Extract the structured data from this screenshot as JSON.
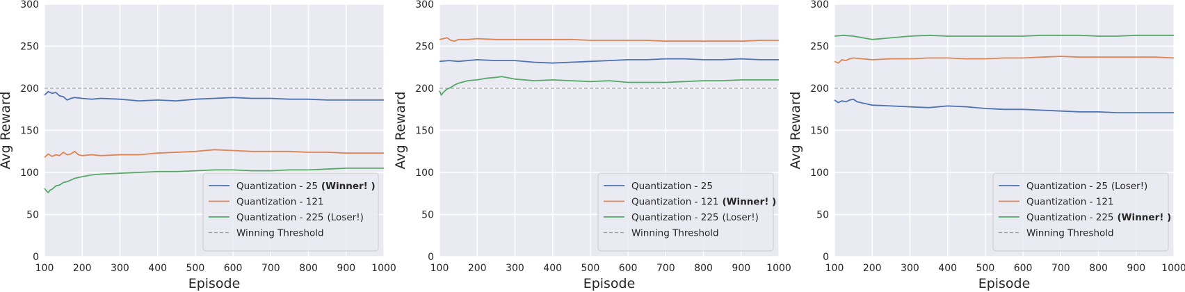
{
  "figure": {
    "panel_count": 3
  },
  "chart_data": [
    {
      "type": "line",
      "xlabel": "Episode",
      "ylabel": "Avg Reward",
      "xlim": [
        100,
        1000
      ],
      "ylim": [
        0,
        300
      ],
      "xticks": [
        100,
        200,
        300,
        400,
        500,
        600,
        700,
        800,
        900,
        1000
      ],
      "yticks": [
        0,
        50,
        100,
        150,
        200,
        250,
        300
      ],
      "grid": true,
      "legend_position": "lower-right",
      "threshold": {
        "name": "Winning Threshold",
        "value": 200,
        "color": "#a0a0a0"
      },
      "series": [
        {
          "name": "Quantization - 25",
          "tag": "(Winner! )",
          "tag_bold": true,
          "color": "#4c72b0",
          "x": [
            100,
            110,
            120,
            130,
            140,
            150,
            160,
            170,
            180,
            200,
            225,
            250,
            300,
            325,
            350,
            400,
            450,
            500,
            550,
            600,
            650,
            700,
            750,
            800,
            850,
            900,
            950,
            1000
          ],
          "values": [
            192,
            196,
            194,
            195,
            191,
            190,
            186,
            188,
            189,
            188,
            187,
            188,
            187,
            186,
            185,
            186,
            185,
            187,
            188,
            189,
            188,
            188,
            187,
            187,
            186,
            186,
            186,
            186
          ]
        },
        {
          "name": "Quantization - 121",
          "tag": "",
          "tag_bold": false,
          "color": "#dd8452",
          "x": [
            100,
            110,
            120,
            130,
            140,
            150,
            160,
            170,
            180,
            190,
            200,
            225,
            250,
            300,
            350,
            400,
            450,
            500,
            550,
            600,
            650,
            700,
            750,
            800,
            850,
            900,
            950,
            1000
          ],
          "values": [
            118,
            122,
            119,
            121,
            120,
            124,
            121,
            122,
            125,
            121,
            120,
            121,
            120,
            121,
            121,
            123,
            124,
            125,
            127,
            126,
            125,
            125,
            125,
            124,
            124,
            123,
            123,
            123
          ]
        },
        {
          "name": "Quantization - 225",
          "tag": "(Loser!)",
          "tag_bold": false,
          "color": "#55a868",
          "x": [
            100,
            105,
            110,
            115,
            120,
            130,
            140,
            150,
            160,
            170,
            180,
            200,
            225,
            250,
            300,
            350,
            400,
            450,
            500,
            550,
            600,
            650,
            700,
            750,
            800,
            850,
            900,
            950,
            1000
          ],
          "values": [
            81,
            78,
            76,
            79,
            80,
            84,
            85,
            88,
            89,
            91,
            93,
            95,
            97,
            98,
            99,
            100,
            101,
            101,
            102,
            103,
            103,
            102,
            102,
            103,
            103,
            104,
            105,
            105,
            105
          ]
        }
      ]
    },
    {
      "type": "line",
      "xlabel": "Episode",
      "ylabel": "Avg Reward",
      "xlim": [
        100,
        1000
      ],
      "ylim": [
        0,
        300
      ],
      "xticks": [
        100,
        200,
        300,
        400,
        500,
        600,
        700,
        800,
        900,
        1000
      ],
      "yticks": [
        0,
        50,
        100,
        150,
        200,
        250,
        300
      ],
      "grid": true,
      "legend_position": "lower-right",
      "threshold": {
        "name": "Winning Threshold",
        "value": 200,
        "color": "#a0a0a0"
      },
      "series": [
        {
          "name": "Quantization - 25",
          "tag": "",
          "tag_bold": false,
          "color": "#4c72b0",
          "x": [
            100,
            125,
            150,
            200,
            250,
            300,
            350,
            400,
            450,
            500,
            550,
            600,
            650,
            700,
            750,
            800,
            850,
            900,
            950,
            1000
          ],
          "values": [
            232,
            233,
            232,
            234,
            233,
            233,
            231,
            230,
            231,
            232,
            233,
            234,
            234,
            235,
            235,
            234,
            234,
            235,
            234,
            234
          ]
        },
        {
          "name": "Quantization - 121",
          "tag": "(Winner! )",
          "tag_bold": true,
          "color": "#dd8452",
          "x": [
            100,
            110,
            120,
            130,
            140,
            150,
            175,
            200,
            250,
            300,
            350,
            400,
            450,
            500,
            550,
            600,
            650,
            700,
            750,
            800,
            850,
            900,
            950,
            1000
          ],
          "values": [
            258,
            259,
            260,
            257,
            256,
            258,
            258,
            259,
            258,
            258,
            258,
            258,
            258,
            257,
            257,
            257,
            257,
            256,
            256,
            256,
            256,
            256,
            257,
            257
          ]
        },
        {
          "name": "Quantization - 225",
          "tag": "(Loser!)",
          "tag_bold": false,
          "color": "#55a868",
          "x": [
            100,
            105,
            110,
            120,
            130,
            140,
            150,
            175,
            200,
            225,
            250,
            265,
            300,
            350,
            400,
            450,
            500,
            550,
            600,
            650,
            700,
            750,
            800,
            850,
            900,
            950,
            1000
          ],
          "values": [
            197,
            192,
            195,
            199,
            201,
            204,
            206,
            209,
            210,
            212,
            213,
            214,
            211,
            209,
            210,
            209,
            208,
            209,
            207,
            207,
            207,
            208,
            209,
            209,
            210,
            210,
            210
          ]
        }
      ]
    },
    {
      "type": "line",
      "xlabel": "Episode",
      "ylabel": "Avg Reward",
      "xlim": [
        100,
        1000
      ],
      "ylim": [
        0,
        300
      ],
      "xticks": [
        100,
        200,
        300,
        400,
        500,
        600,
        700,
        800,
        900,
        1000
      ],
      "yticks": [
        0,
        50,
        100,
        150,
        200,
        250,
        300
      ],
      "grid": true,
      "legend_position": "lower-right",
      "threshold": {
        "name": "Winning Threshold",
        "value": 200,
        "color": "#a0a0a0"
      },
      "series": [
        {
          "name": "Quantization - 25",
          "tag": "(Loser!)",
          "tag_bold": false,
          "color": "#4c72b0",
          "x": [
            100,
            110,
            120,
            130,
            140,
            150,
            160,
            170,
            200,
            250,
            300,
            350,
            400,
            450,
            500,
            550,
            600,
            650,
            700,
            750,
            800,
            850,
            900,
            950,
            1000
          ],
          "values": [
            186,
            183,
            185,
            184,
            186,
            187,
            184,
            183,
            180,
            179,
            178,
            177,
            179,
            178,
            176,
            175,
            175,
            174,
            173,
            172,
            172,
            171,
            171,
            171,
            171
          ]
        },
        {
          "name": "Quantization - 121",
          "tag": "",
          "tag_bold": false,
          "color": "#dd8452",
          "x": [
            100,
            110,
            120,
            130,
            140,
            150,
            175,
            200,
            250,
            300,
            350,
            400,
            450,
            500,
            550,
            600,
            650,
            700,
            750,
            800,
            850,
            900,
            950,
            1000
          ],
          "values": [
            232,
            230,
            234,
            233,
            235,
            236,
            235,
            234,
            235,
            235,
            236,
            236,
            235,
            235,
            236,
            236,
            237,
            238,
            237,
            237,
            237,
            237,
            237,
            236
          ]
        },
        {
          "name": "Quantization - 225",
          "tag": "(Winner! )",
          "tag_bold": true,
          "color": "#55a868",
          "x": [
            100,
            125,
            150,
            175,
            200,
            250,
            300,
            350,
            400,
            450,
            500,
            550,
            600,
            650,
            700,
            750,
            800,
            850,
            900,
            950,
            1000
          ],
          "values": [
            262,
            263,
            262,
            260,
            258,
            260,
            262,
            263,
            262,
            262,
            262,
            262,
            262,
            263,
            263,
            263,
            262,
            262,
            263,
            263,
            263
          ]
        }
      ]
    }
  ]
}
